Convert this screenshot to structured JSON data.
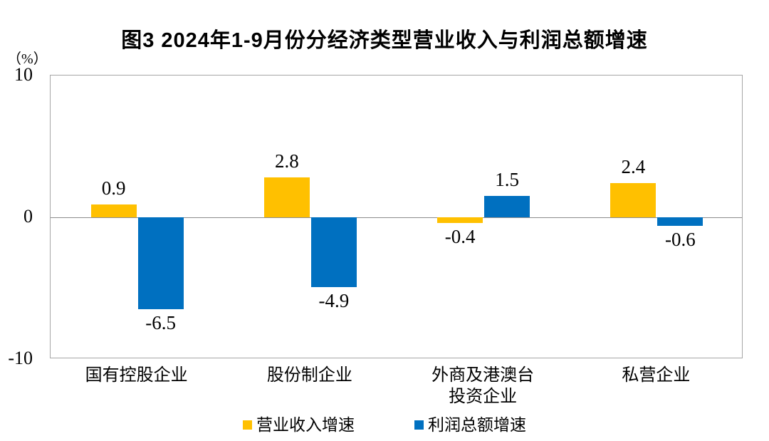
{
  "chart_data": {
    "type": "bar",
    "title": "图3 2024年1-9月份分经济类型营业收入与利润总额增速",
    "unit_label": "（%）",
    "categories": [
      "国有控股企业",
      "股份制企业",
      "外商及港澳台\n投资企业",
      "私营企业"
    ],
    "series": [
      {
        "key": "revenue-growth",
        "name": "营业收入增速",
        "color": "#FFC000",
        "values": [
          0.9,
          2.8,
          -0.4,
          2.4
        ],
        "labels": [
          "0.9",
          "2.8",
          "-0.4",
          "2.4"
        ]
      },
      {
        "key": "profit-growth",
        "name": "利润总额增速",
        "color": "#0070C0",
        "values": [
          -6.5,
          -4.9,
          1.5,
          -0.6
        ],
        "labels": [
          "-6.5",
          "-4.9",
          "1.5",
          "-0.6"
        ]
      }
    ],
    "ylim": [
      -10,
      10
    ],
    "yticks": [
      "10",
      "0",
      "-10"
    ],
    "ytick_values": [
      10,
      0,
      -10
    ],
    "grid": false,
    "zero_line": true,
    "legend_position": "bottom",
    "axis_box_color": "#a6a6a6",
    "zero_line_color": "#8c8c8c",
    "text_color": "#000000"
  }
}
